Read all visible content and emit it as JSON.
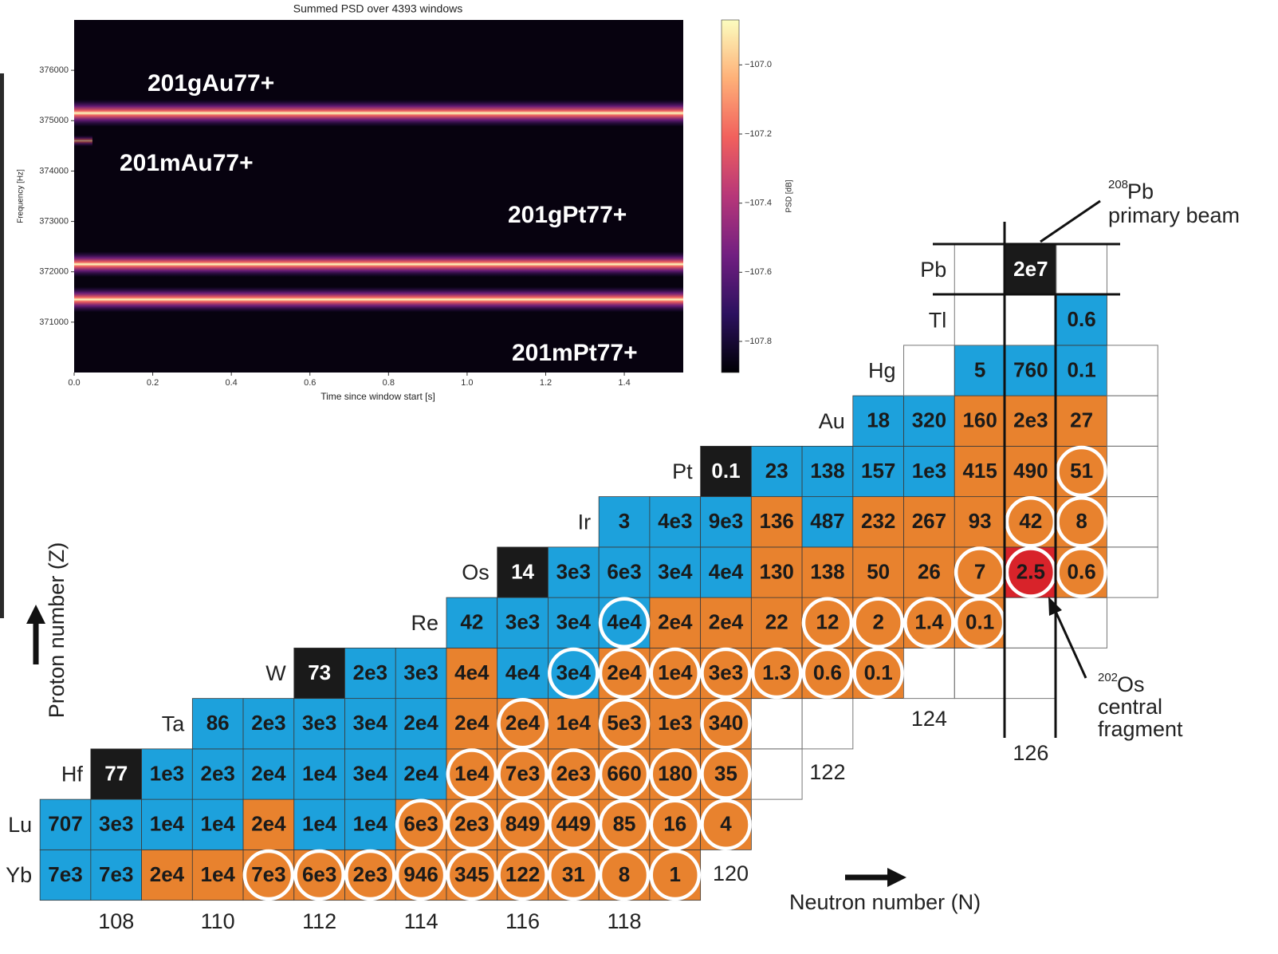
{
  "chart_data": [
    {
      "type": "heatmap",
      "title": "Summed PSD over 4393 windows",
      "xlabel": "Time since window start [s]",
      "ylabel": "Frequency [Hz]",
      "xlim": [
        0,
        1.55
      ],
      "ylim": [
        370000,
        377000
      ],
      "xticks": [
        {
          "value": 0,
          "label": "0.0"
        },
        0.2,
        0.4,
        0.6,
        0.8,
        {
          "value": 1,
          "label": "1.0"
        },
        1.2,
        1.4
      ],
      "yticks": [
        371000,
        372000,
        373000,
        374000,
        375000,
        376000
      ],
      "colorbar": {
        "label": "PSD [dB]",
        "lim": [
          -107.89,
          -106.87
        ],
        "ticks": [
          {
            "value": -107.0,
            "label": "−107.0"
          },
          {
            "value": -107.2,
            "label": "−107.2"
          },
          {
            "value": -107.4,
            "label": "−107.4"
          },
          {
            "value": -107.6,
            "label": "−107.6"
          },
          {
            "value": -107.8,
            "label": "−107.8"
          }
        ],
        "colormap": [
          "#000004",
          "#2c115f",
          "#721f81",
          "#b73779",
          "#f1605d",
          "#feb078",
          "#fcfdbf"
        ]
      },
      "bands": [
        {
          "name": "201gAu77+",
          "frequency": 375150
        },
        {
          "name": "201mAu77+",
          "frequency": 374600
        },
        {
          "name": "201gPt77+",
          "frequency": 372150
        },
        {
          "name": "201mPt77+",
          "frequency": 371450
        }
      ]
    }
  ],
  "nuclide_chart": {
    "z_axis_label": "Proton number (Z)",
    "n_axis_label": "Neutron number (N)",
    "neutron_ticks": [
      108,
      110,
      112,
      114,
      116,
      118,
      120,
      122,
      124,
      126
    ],
    "rows": [
      {
        "symbol": "Yb",
        "n_start": 107,
        "cells": [
          {
            "label": "7e3",
            "color": "#1da1dc",
            "circled": false
          },
          {
            "label": "7e3",
            "color": "#1da1dc",
            "circled": false
          },
          {
            "label": "2e4",
            "color": "#e8822e",
            "circled": false
          },
          {
            "label": "1e4",
            "color": "#e8822e",
            "circled": false
          },
          {
            "label": "7e3",
            "color": "#e8822e",
            "circled": true
          },
          {
            "label": "6e3",
            "color": "#e8822e",
            "circled": true
          },
          {
            "label": "2e3",
            "color": "#e8822e",
            "circled": true
          },
          {
            "label": "946",
            "color": "#e8822e",
            "circled": true
          },
          {
            "label": "345",
            "color": "#e8822e",
            "circled": true
          },
          {
            "label": "122",
            "color": "#e8822e",
            "circled": true
          },
          {
            "label": "31",
            "color": "#e8822e",
            "circled": true
          },
          {
            "label": "8",
            "color": "#e8822e",
            "circled": true
          },
          {
            "label": "1",
            "color": "#e8822e",
            "circled": true
          }
        ]
      },
      {
        "symbol": "Lu",
        "n_start": 107,
        "cells": [
          {
            "label": "707",
            "color": "#1da1dc",
            "circled": false
          },
          {
            "label": "3e3",
            "color": "#1da1dc",
            "circled": false
          },
          {
            "label": "1e4",
            "color": "#1da1dc",
            "circled": false
          },
          {
            "label": "1e4",
            "color": "#1da1dc",
            "circled": false
          },
          {
            "label": "2e4",
            "color": "#e8822e",
            "circled": false
          },
          {
            "label": "1e4",
            "color": "#1da1dc",
            "circled": false
          },
          {
            "label": "1e4",
            "color": "#1da1dc",
            "circled": false
          },
          {
            "label": "6e3",
            "color": "#e8822e",
            "circled": true
          },
          {
            "label": "2e3",
            "color": "#e8822e",
            "circled": true
          },
          {
            "label": "849",
            "color": "#e8822e",
            "circled": true
          },
          {
            "label": "449",
            "color": "#e8822e",
            "circled": true
          },
          {
            "label": "85",
            "color": "#e8822e",
            "circled": true
          },
          {
            "label": "16",
            "color": "#e8822e",
            "circled": true
          },
          {
            "label": "4",
            "color": "#e8822e",
            "circled": true
          }
        ]
      },
      {
        "symbol": "Hf",
        "n_start": 108,
        "cells": [
          {
            "label": "77",
            "color": "#1a1a1a",
            "circled": false
          },
          {
            "label": "1e3",
            "color": "#1da1dc",
            "circled": false
          },
          {
            "label": "2e3",
            "color": "#1da1dc",
            "circled": false
          },
          {
            "label": "2e4",
            "color": "#1da1dc",
            "circled": false
          },
          {
            "label": "1e4",
            "color": "#1da1dc",
            "circled": false
          },
          {
            "label": "3e4",
            "color": "#1da1dc",
            "circled": false
          },
          {
            "label": "2e4",
            "color": "#1da1dc",
            "circled": false
          },
          {
            "label": "1e4",
            "color": "#e8822e",
            "circled": true
          },
          {
            "label": "7e3",
            "color": "#e8822e",
            "circled": true
          },
          {
            "label": "2e3",
            "color": "#e8822e",
            "circled": true
          },
          {
            "label": "660",
            "color": "#e8822e",
            "circled": true
          },
          {
            "label": "180",
            "color": "#e8822e",
            "circled": true
          },
          {
            "label": "35",
            "color": "#e8822e",
            "circled": true
          },
          {
            "label": null
          }
        ]
      },
      {
        "symbol": "Ta",
        "n_start": 110,
        "cells": [
          {
            "label": "86",
            "color": "#1da1dc",
            "circled": false
          },
          {
            "label": "2e3",
            "color": "#1da1dc",
            "circled": false
          },
          {
            "label": "3e3",
            "color": "#1da1dc",
            "circled": false
          },
          {
            "label": "3e4",
            "color": "#1da1dc",
            "circled": false
          },
          {
            "label": "2e4",
            "color": "#1da1dc",
            "circled": false
          },
          {
            "label": "2e4",
            "color": "#e8822e",
            "circled": false
          },
          {
            "label": "2e4",
            "color": "#e8822e",
            "circled": true
          },
          {
            "label": "1e4",
            "color": "#e8822e",
            "circled": false
          },
          {
            "label": "5e3",
            "color": "#e8822e",
            "circled": true
          },
          {
            "label": "1e3",
            "color": "#e8822e",
            "circled": false
          },
          {
            "label": "340",
            "color": "#e8822e",
            "circled": true
          },
          {
            "label": null
          },
          {
            "label": null
          }
        ]
      },
      {
        "symbol": "W",
        "n_start": 112,
        "cells": [
          {
            "label": "73",
            "color": "#1a1a1a",
            "circled": false
          },
          {
            "label": "2e3",
            "color": "#1da1dc",
            "circled": false
          },
          {
            "label": "3e3",
            "color": "#1da1dc",
            "circled": false
          },
          {
            "label": "4e4",
            "color": "#e8822e",
            "circled": false
          },
          {
            "label": "4e4",
            "color": "#1da1dc",
            "circled": false
          },
          {
            "label": "3e4",
            "color": "#1da1dc",
            "circled": true
          },
          {
            "label": "2e4",
            "color": "#e8822e",
            "circled": true
          },
          {
            "label": "1e4",
            "color": "#e8822e",
            "circled": true
          },
          {
            "label": "3e3",
            "color": "#e8822e",
            "circled": true
          },
          {
            "label": "1.3",
            "color": "#e8822e",
            "circled": true
          },
          {
            "label": "0.6",
            "color": "#e8822e",
            "circled": true
          },
          {
            "label": "0.1",
            "color": "#e8822e",
            "circled": true
          },
          {
            "label": null
          },
          {
            "label": null
          },
          {
            "label": null
          }
        ]
      },
      {
        "symbol": "Re",
        "n_start": 115,
        "cells": [
          {
            "label": "42",
            "color": "#1da1dc",
            "circled": false
          },
          {
            "label": "3e3",
            "color": "#1da1dc",
            "circled": false
          },
          {
            "label": "3e4",
            "color": "#1da1dc",
            "circled": false
          },
          {
            "label": "4e4",
            "color": "#1da1dc",
            "circled": true
          },
          {
            "label": "2e4",
            "color": "#e8822e",
            "circled": false
          },
          {
            "label": "2e4",
            "color": "#e8822e",
            "circled": false
          },
          {
            "label": "22",
            "color": "#e8822e",
            "circled": false
          },
          {
            "label": "12",
            "color": "#e8822e",
            "circled": true
          },
          {
            "label": "2",
            "color": "#e8822e",
            "circled": true
          },
          {
            "label": "1.4",
            "color": "#e8822e",
            "circled": true
          },
          {
            "label": "0.1",
            "color": "#e8822e",
            "circled": true
          },
          {
            "label": null
          },
          {
            "label": null
          }
        ]
      },
      {
        "symbol": "Os",
        "n_start": 116,
        "cells": [
          {
            "label": "14",
            "color": "#1a1a1a",
            "circled": false
          },
          {
            "label": "3e3",
            "color": "#1da1dc",
            "circled": false
          },
          {
            "label": "6e3",
            "color": "#1da1dc",
            "circled": false
          },
          {
            "label": "3e4",
            "color": "#1da1dc",
            "circled": false
          },
          {
            "label": "4e4",
            "color": "#1da1dc",
            "circled": false
          },
          {
            "label": "130",
            "color": "#e8822e",
            "circled": false
          },
          {
            "label": "138",
            "color": "#e8822e",
            "circled": false
          },
          {
            "label": "50",
            "color": "#e8822e",
            "circled": false
          },
          {
            "label": "26",
            "color": "#e8822e",
            "circled": false
          },
          {
            "label": "7",
            "color": "#e8822e",
            "circled": true
          },
          {
            "label": "2.5",
            "color": "#d8232a",
            "circled": true
          },
          {
            "label": "0.6",
            "color": "#e8822e",
            "circled": true
          },
          {
            "label": null
          }
        ]
      },
      {
        "symbol": "Ir",
        "n_start": 118,
        "cells": [
          {
            "label": "3",
            "color": "#1da1dc",
            "circled": false
          },
          {
            "label": "4e3",
            "color": "#1da1dc",
            "circled": false
          },
          {
            "label": "9e3",
            "color": "#1da1dc",
            "circled": false
          },
          {
            "label": "136",
            "color": "#e8822e",
            "circled": false
          },
          {
            "label": "487",
            "color": "#1da1dc",
            "circled": false
          },
          {
            "label": "232",
            "color": "#e8822e",
            "circled": false
          },
          {
            "label": "267",
            "color": "#e8822e",
            "circled": false
          },
          {
            "label": "93",
            "color": "#e8822e",
            "circled": false
          },
          {
            "label": "42",
            "color": "#e8822e",
            "circled": true
          },
          {
            "label": "8",
            "color": "#e8822e",
            "circled": true
          },
          {
            "label": null
          }
        ]
      },
      {
        "symbol": "Pt",
        "n_start": 120,
        "cells": [
          {
            "label": "0.1",
            "color": "#1a1a1a",
            "circled": false
          },
          {
            "label": "23",
            "color": "#1da1dc",
            "circled": false
          },
          {
            "label": "138",
            "color": "#1da1dc",
            "circled": false
          },
          {
            "label": "157",
            "color": "#1da1dc",
            "circled": false
          },
          {
            "label": "1e3",
            "color": "#1da1dc",
            "circled": false
          },
          {
            "label": "415",
            "color": "#e8822e",
            "circled": false
          },
          {
            "label": "490",
            "color": "#e8822e",
            "circled": false
          },
          {
            "label": "51",
            "color": "#e8822e",
            "circled": true
          },
          {
            "label": null
          }
        ]
      },
      {
        "symbol": "Au",
        "n_start": 123,
        "cells": [
          {
            "label": "18",
            "color": "#1da1dc",
            "circled": false
          },
          {
            "label": "320",
            "color": "#1da1dc",
            "circled": false
          },
          {
            "label": "160",
            "color": "#e8822e",
            "circled": false
          },
          {
            "label": "2e3",
            "color": "#e8822e",
            "circled": false
          },
          {
            "label": "27",
            "color": "#e8822e",
            "circled": false
          },
          {
            "label": null
          }
        ]
      },
      {
        "symbol": "Hg",
        "n_start": 124,
        "cells": [
          {
            "label": null
          },
          {
            "label": "5",
            "color": "#1da1dc",
            "circled": false
          },
          {
            "label": "760",
            "color": "#1da1dc",
            "circled": false
          },
          {
            "label": "0.1",
            "color": "#1da1dc",
            "circled": false
          },
          {
            "label": null
          }
        ]
      },
      {
        "symbol": "Tl",
        "n_start": 125,
        "cells": [
          {
            "label": null
          },
          {
            "label": null
          },
          {
            "label": "0.6",
            "color": "#1da1dc",
            "circled": false
          }
        ]
      },
      {
        "symbol": "Pb",
        "n_start": 125,
        "cells": [
          {
            "label": null
          },
          {
            "label": "2e7",
            "color": "#1a1a1a",
            "circled": false
          },
          {
            "label": null
          }
        ]
      }
    ],
    "beam_note": {
      "mass": "208",
      "symbol": "Pb",
      "text": "primary beam"
    },
    "fragment_note": {
      "mass": "202",
      "symbol": "Os",
      "lines": [
        "central",
        "fragment"
      ]
    }
  }
}
